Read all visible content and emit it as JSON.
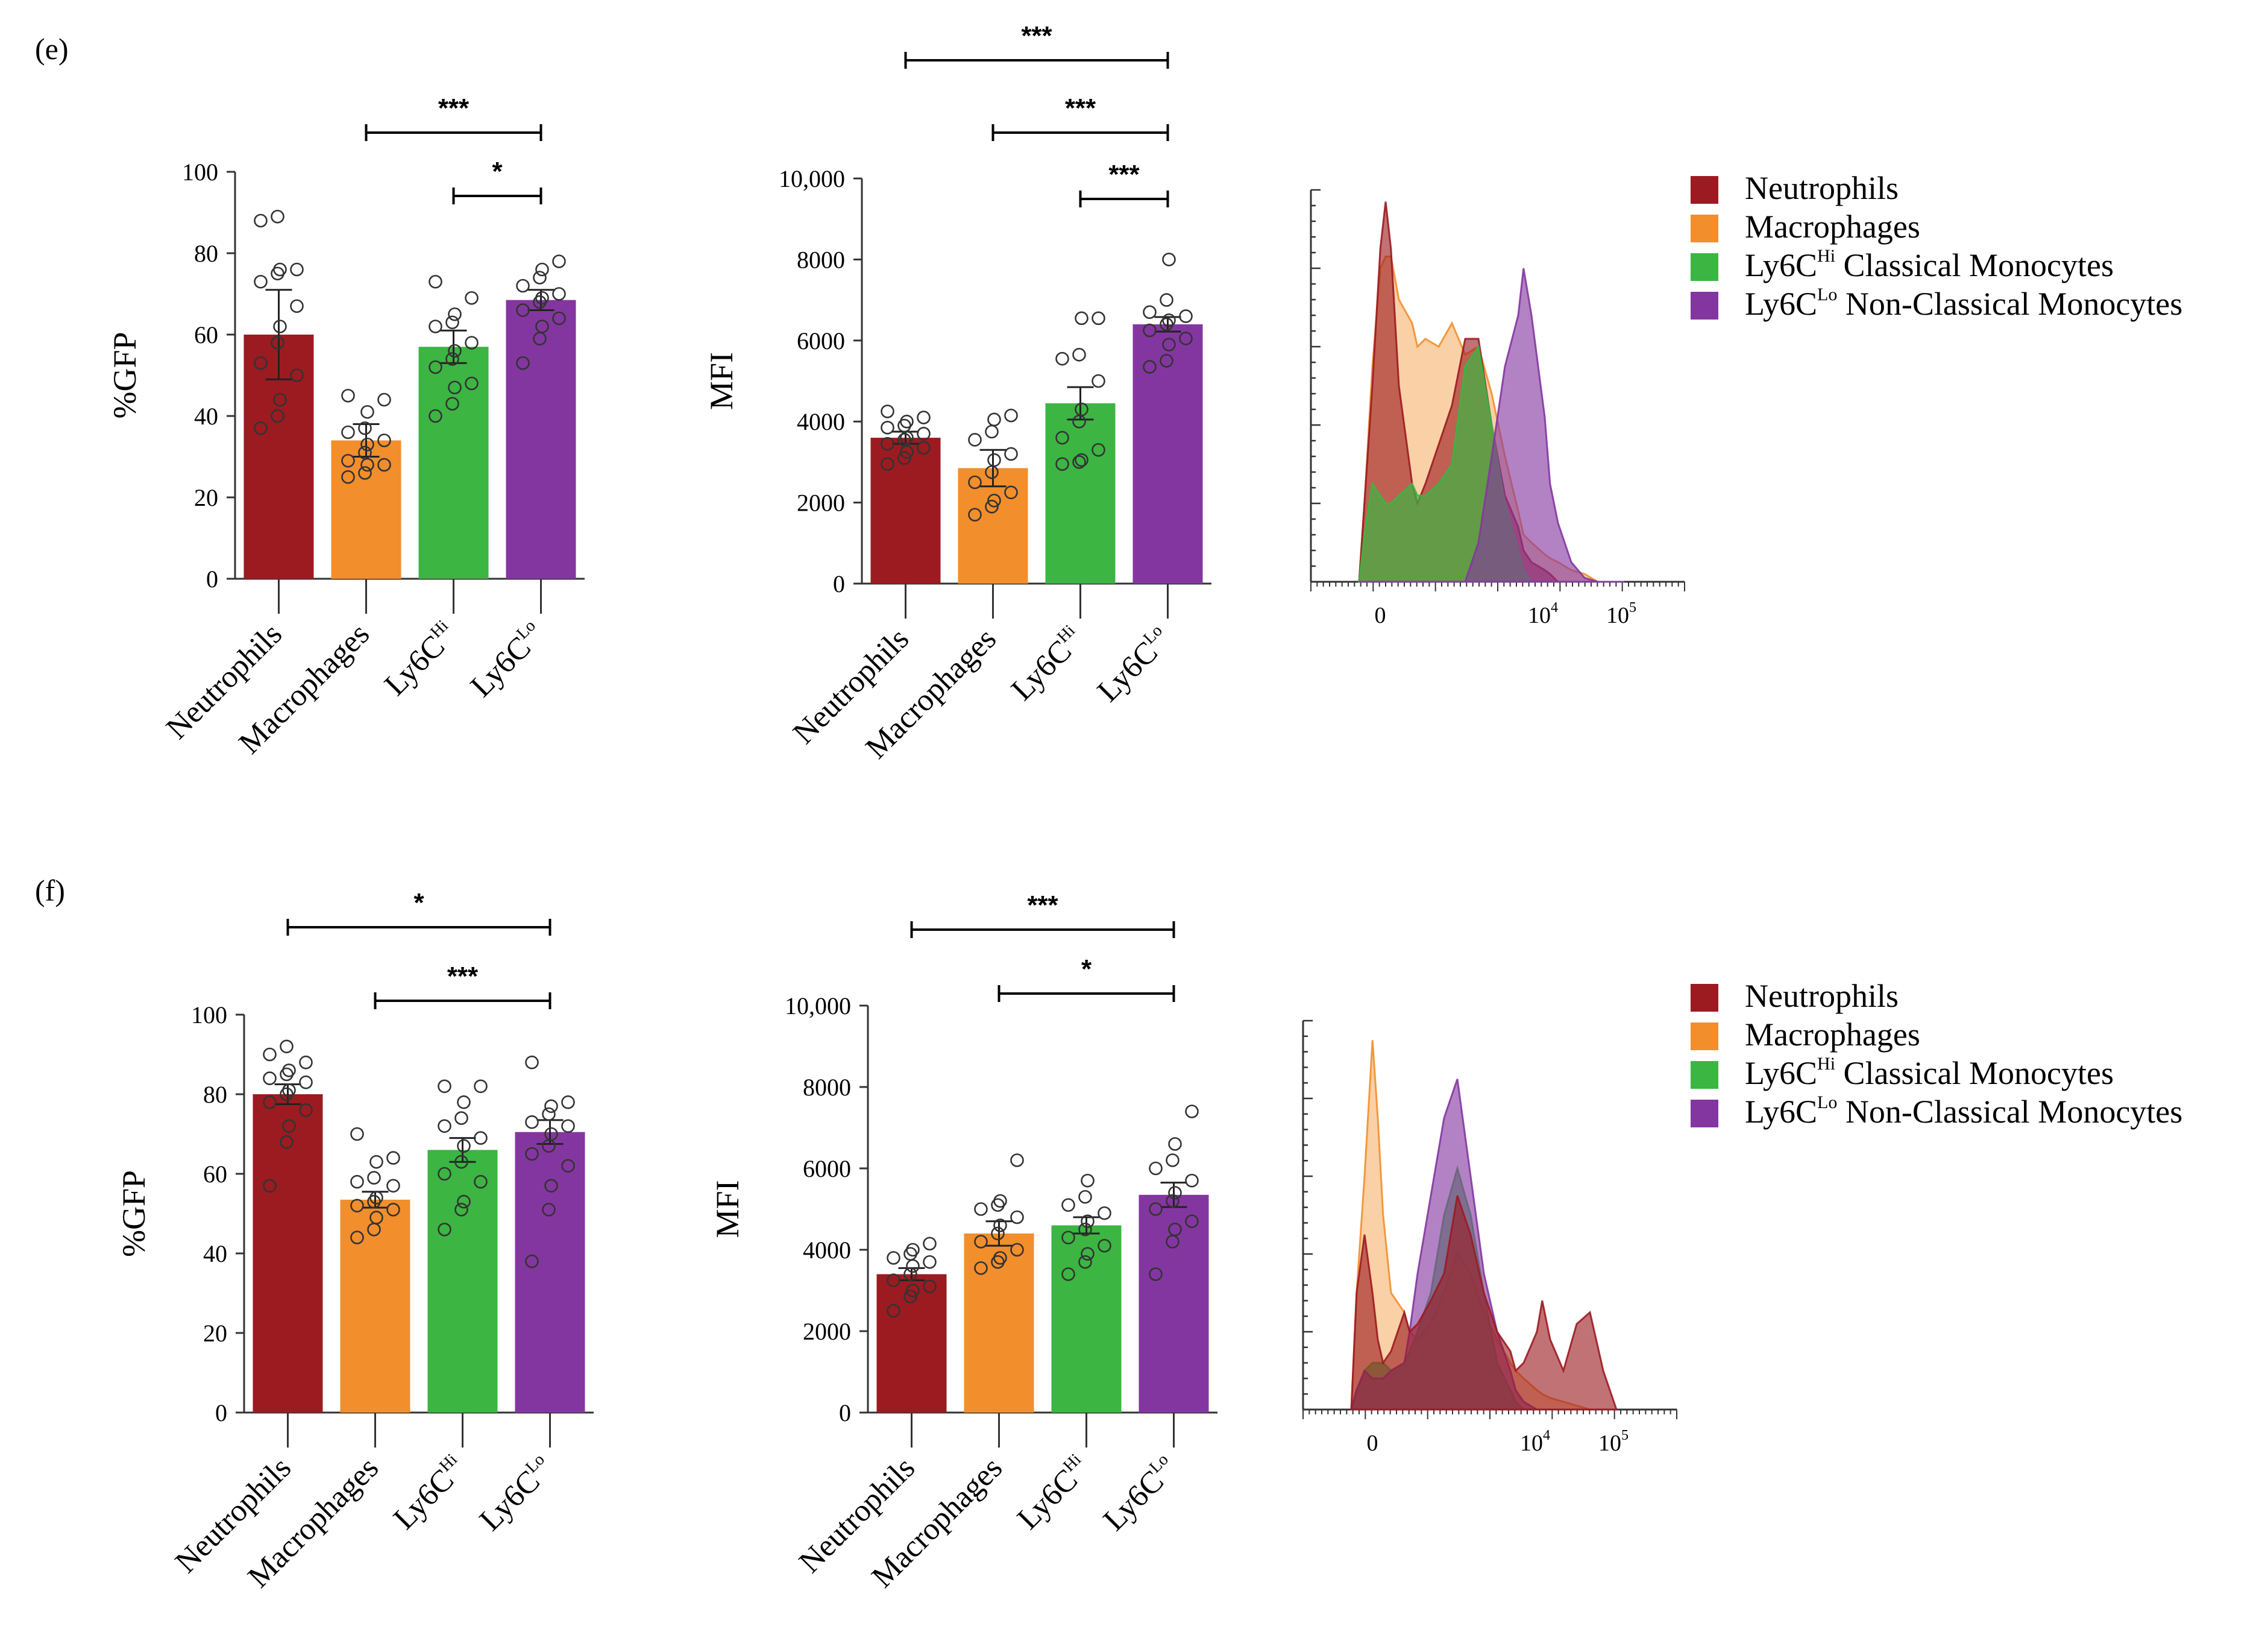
{
  "panels": [
    {
      "label": "(e)"
    },
    {
      "label": "(f)"
    }
  ],
  "colors": {
    "Neutrophils": "#9b1b21",
    "Macrophages": "#f28e2c",
    "Ly6CHi": "#3cb543",
    "Ly6CLo": "#8436a0",
    "mixBlue": "#3a4a9a"
  },
  "legend": {
    "items": [
      {
        "name": "Neutrophils",
        "text": "Neutrophils",
        "sup": "",
        "rest": "",
        "color": "#9b1b21"
      },
      {
        "name": "Macrophages",
        "text": "Macrophages",
        "sup": "",
        "rest": "",
        "color": "#f28e2c"
      },
      {
        "name": "Ly6CHi",
        "text": "Ly6C",
        "sup": "Hi",
        "rest": " Classical Monocytes",
        "color": "#3cb543"
      },
      {
        "name": "Ly6CLo",
        "text": "Ly6C",
        "sup": "Lo",
        "rest": " Non-Classical Monocytes",
        "color": "#8436a0"
      }
    ]
  },
  "chart_data": [
    {
      "id": "e-gfp",
      "panel": "(e)",
      "type": "bar",
      "ylabel": "%GFP",
      "ylim": [
        0,
        100
      ],
      "yticks": [
        0,
        20,
        40,
        60,
        80,
        100
      ],
      "ytick_labels": [
        "0",
        "20",
        "40",
        "60",
        "80",
        "100"
      ],
      "categories": [
        "Neutrophils",
        "Macrophages",
        "Ly6CHi",
        "Ly6CLo"
      ],
      "category_labels": [
        {
          "base": "Neutrophils",
          "sup": ""
        },
        {
          "base": "Macrophages",
          "sup": ""
        },
        {
          "base": "Ly6C",
          "sup": "Hi"
        },
        {
          "base": "Ly6C",
          "sup": "Lo"
        }
      ],
      "values": [
        60,
        34,
        57,
        68.5
      ],
      "errors": [
        11,
        4,
        4,
        2.5
      ],
      "points": [
        [
          37,
          40,
          44,
          50,
          53,
          58,
          62,
          67,
          73,
          75,
          76,
          76,
          88,
          89
        ],
        [
          25,
          26,
          28,
          28,
          29,
          31,
          33,
          34,
          36,
          37,
          41,
          44,
          45
        ],
        [
          40,
          43,
          47,
          48,
          52,
          54,
          56,
          58,
          62,
          63,
          65,
          69,
          73
        ],
        [
          53,
          59,
          62,
          64,
          66,
          68,
          69,
          70,
          72,
          74,
          76,
          78
        ]
      ],
      "significance": [
        {
          "from": 1,
          "to": 3,
          "label": "***"
        },
        {
          "from": 2,
          "to": 3,
          "label": "*"
        }
      ]
    },
    {
      "id": "e-mfi",
      "panel": "(e)",
      "type": "bar",
      "ylabel": "MFI",
      "ylim": [
        0,
        10000
      ],
      "yticks": [
        0,
        2000,
        4000,
        6000,
        8000,
        10000
      ],
      "ytick_labels": [
        "0",
        "2000",
        "4000",
        "6000",
        "8000",
        "10,000"
      ],
      "categories": [
        "Neutrophils",
        "Macrophages",
        "Ly6CHi",
        "Ly6CLo"
      ],
      "category_labels": [
        {
          "base": "Neutrophils",
          "sup": ""
        },
        {
          "base": "Macrophages",
          "sup": ""
        },
        {
          "base": "Ly6C",
          "sup": "Hi"
        },
        {
          "base": "Ly6C",
          "sup": "Lo"
        }
      ],
      "values": [
        3600,
        2850,
        4450,
        6400
      ],
      "errors": [
        150,
        450,
        400,
        180
      ],
      "points": [
        [
          2950,
          3100,
          3250,
          3350,
          3450,
          3550,
          3600,
          3700,
          3850,
          3900,
          4000,
          4100,
          4250
        ],
        [
          1700,
          1900,
          2050,
          2250,
          2500,
          2750,
          3050,
          3200,
          3550,
          3750,
          4050,
          4150
        ],
        [
          2950,
          3000,
          3050,
          3300,
          3600,
          4000,
          4300,
          5000,
          5550,
          5650,
          6550,
          6550
        ],
        [
          5350,
          5500,
          5900,
          6050,
          6250,
          6400,
          6500,
          6600,
          6700,
          7000,
          8000
        ]
      ],
      "significance": [
        {
          "from": 0,
          "to": 3,
          "label": "***"
        },
        {
          "from": 1,
          "to": 3,
          "label": "***"
        },
        {
          "from": 2,
          "to": 3,
          "label": "***"
        }
      ]
    },
    {
      "id": "f-gfp",
      "panel": "(f)",
      "type": "bar",
      "ylabel": "%GFP",
      "ylim": [
        0,
        100
      ],
      "yticks": [
        0,
        20,
        40,
        60,
        80,
        100
      ],
      "ytick_labels": [
        "0",
        "20",
        "40",
        "60",
        "80",
        "100"
      ],
      "categories": [
        "Neutrophils",
        "Macrophages",
        "Ly6CHi",
        "Ly6CLo"
      ],
      "category_labels": [
        {
          "base": "Neutrophils",
          "sup": ""
        },
        {
          "base": "Macrophages",
          "sup": ""
        },
        {
          "base": "Ly6C",
          "sup": "Hi"
        },
        {
          "base": "Ly6C",
          "sup": "Lo"
        }
      ],
      "values": [
        80,
        53.5,
        66,
        70.5
      ],
      "errors": [
        2.5,
        2,
        3,
        3
      ],
      "points": [
        [
          57,
          68,
          72,
          76,
          78,
          80,
          81,
          83,
          84,
          85,
          86,
          88,
          90,
          92
        ],
        [
          44,
          46,
          49,
          51,
          52,
          53,
          54,
          57,
          58,
          59,
          63,
          64,
          70
        ],
        [
          46,
          51,
          53,
          58,
          60,
          63,
          67,
          69,
          72,
          74,
          78,
          82,
          82
        ],
        [
          38,
          51,
          57,
          62,
          65,
          67,
          70,
          72,
          73,
          75,
          77,
          78,
          88
        ]
      ],
      "significance": [
        {
          "from": 0,
          "to": 3,
          "label": "*"
        },
        {
          "from": 1,
          "to": 3,
          "label": "***"
        }
      ]
    },
    {
      "id": "f-mfi",
      "panel": "(f)",
      "type": "bar",
      "ylabel": "MFI",
      "ylim": [
        0,
        10000
      ],
      "yticks": [
        0,
        2000,
        4000,
        6000,
        8000,
        10000
      ],
      "ytick_labels": [
        "0",
        "2000",
        "4000",
        "6000",
        "8000",
        "10,000"
      ],
      "categories": [
        "Neutrophils",
        "Macrophages",
        "Ly6CHi",
        "Ly6CLo"
      ],
      "category_labels": [
        {
          "base": "Neutrophils",
          "sup": ""
        },
        {
          "base": "Macrophages",
          "sup": ""
        },
        {
          "base": "Ly6C",
          "sup": "Hi"
        },
        {
          "base": "Ly6C",
          "sup": "Lo"
        }
      ],
      "values": [
        3400,
        4400,
        4600,
        5350
      ],
      "errors": [
        150,
        300,
        200,
        300
      ],
      "points": [
        [
          2500,
          2850,
          3000,
          3100,
          3250,
          3400,
          3600,
          3700,
          3800,
          3900,
          4000,
          4150
        ],
        [
          3550,
          3700,
          3800,
          4000,
          4200,
          4400,
          4600,
          4800,
          5000,
          5100,
          5200,
          6200
        ],
        [
          3400,
          3700,
          3900,
          4100,
          4300,
          4500,
          4700,
          4900,
          5100,
          5300,
          5700
        ],
        [
          3400,
          4200,
          4500,
          4700,
          5000,
          5200,
          5400,
          5700,
          6000,
          6200,
          6600,
          7400
        ]
      ],
      "significance": [
        {
          "from": 0,
          "to": 3,
          "label": "***"
        },
        {
          "from": 1,
          "to": 3,
          "label": "*"
        }
      ]
    },
    {
      "id": "e-hist",
      "panel": "(e)",
      "type": "area",
      "xtick_labels": [
        {
          "base": "0",
          "sup": ""
        },
        {
          "base": "10",
          "sup": "4"
        },
        {
          "base": "10",
          "sup": "5"
        }
      ],
      "x": [
        0,
        0.02,
        0.05,
        0.08,
        0.1,
        0.12,
        0.15,
        0.2,
        0.22,
        0.25,
        0.3,
        0.35,
        0.4,
        0.45,
        0.5,
        0.55,
        0.6,
        0.62,
        0.65,
        0.7,
        0.72,
        0.75,
        0.8,
        0.85,
        0.9,
        0.95,
        1
      ],
      "series": [
        {
          "name": "Macrophages",
          "values": [
            0,
            0.2,
            0.55,
            0.8,
            0.83,
            0.83,
            0.72,
            0.66,
            0.6,
            0.62,
            0.6,
            0.66,
            0.58,
            0.6,
            0.48,
            0.32,
            0.18,
            0.12,
            0.1,
            0.07,
            0.06,
            0.05,
            0.03,
            0.02,
            0,
            0,
            0
          ]
        },
        {
          "name": "Neutrophils",
          "values": [
            0,
            0.2,
            0.5,
            0.85,
            0.97,
            0.85,
            0.5,
            0.25,
            0.2,
            0.25,
            0.35,
            0.45,
            0.62,
            0.62,
            0.4,
            0.22,
            0.14,
            0.08,
            0.05,
            0.03,
            0.02,
            0,
            0,
            0,
            0,
            0,
            0
          ]
        },
        {
          "name": "Ly6CHi",
          "values": [
            0,
            0.12,
            0.25,
            0.22,
            0.2,
            0.2,
            0.22,
            0.25,
            0.22,
            0.22,
            0.25,
            0.3,
            0.55,
            0.6,
            0.4,
            0.2,
            0.08,
            0.03,
            0,
            0,
            0,
            0,
            0,
            0,
            0,
            0,
            0
          ]
        },
        {
          "name": "Ly6CLo",
          "values": [
            0,
            0,
            0,
            0,
            0,
            0,
            0,
            0,
            0,
            0,
            0,
            0,
            0,
            0.1,
            0.32,
            0.55,
            0.68,
            0.8,
            0.68,
            0.42,
            0.25,
            0.15,
            0.05,
            0.01,
            0,
            0,
            0
          ]
        }
      ]
    },
    {
      "id": "f-hist",
      "panel": "(f)",
      "type": "area",
      "xtick_labels": [
        {
          "base": "0",
          "sup": ""
        },
        {
          "base": "10",
          "sup": "4"
        },
        {
          "base": "10",
          "sup": "5"
        }
      ],
      "x": [
        0,
        0.02,
        0.05,
        0.08,
        0.1,
        0.12,
        0.15,
        0.2,
        0.22,
        0.25,
        0.3,
        0.35,
        0.4,
        0.45,
        0.5,
        0.55,
        0.6,
        0.62,
        0.65,
        0.7,
        0.72,
        0.75,
        0.8,
        0.85,
        0.9,
        0.95,
        1
      ],
      "series": [
        {
          "name": "Macrophages",
          "values": [
            0,
            0.3,
            0.6,
            0.95,
            0.75,
            0.5,
            0.3,
            0.25,
            0.2,
            0.18,
            0.22,
            0.3,
            0.4,
            0.35,
            0.25,
            0.18,
            0.12,
            0.1,
            0.08,
            0.05,
            0.04,
            0.03,
            0.02,
            0.01,
            0,
            0,
            0
          ]
        },
        {
          "name": "Ly6CHi",
          "values": [
            0,
            0.05,
            0.1,
            0.12,
            0.12,
            0.12,
            0.1,
            0.12,
            0.15,
            0.2,
            0.3,
            0.5,
            0.62,
            0.5,
            0.3,
            0.12,
            0.05,
            0.02,
            0,
            0,
            0,
            0,
            0,
            0,
            0,
            0,
            0
          ]
        },
        {
          "name": "Ly6CLo",
          "values": [
            0,
            0.05,
            0.1,
            0.08,
            0.08,
            0.08,
            0.1,
            0.12,
            0.2,
            0.35,
            0.55,
            0.75,
            0.85,
            0.6,
            0.35,
            0.2,
            0.1,
            0.05,
            0.02,
            0,
            0,
            0,
            0,
            0,
            0,
            0,
            0
          ]
        },
        {
          "name": "Neutrophils",
          "values": [
            0,
            0.3,
            0.45,
            0.3,
            0.18,
            0.12,
            0.15,
            0.25,
            0.2,
            0.22,
            0.28,
            0.35,
            0.55,
            0.45,
            0.3,
            0.2,
            0.15,
            0.1,
            0.12,
            0.2,
            0.28,
            0.18,
            0.1,
            0.22,
            0.25,
            0.1,
            0
          ]
        }
      ]
    }
  ]
}
